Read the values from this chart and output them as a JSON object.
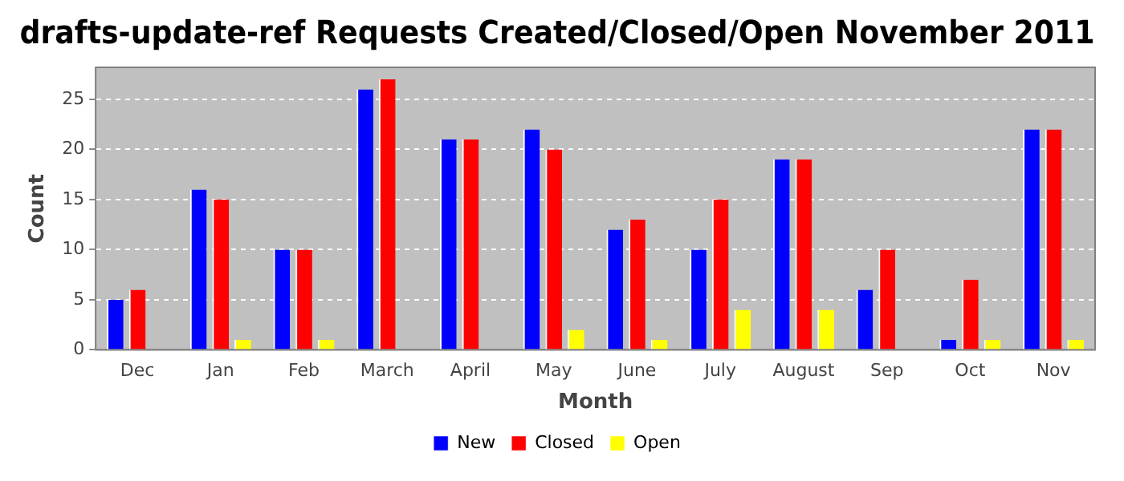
{
  "chart_data": {
    "type": "bar",
    "title": "drafts-update-ref Requests Created/Closed/Open November 2011",
    "xlabel": "Month",
    "ylabel": "Count",
    "categories": [
      "Dec",
      "Jan",
      "Feb",
      "March",
      "April",
      "May",
      "June",
      "July",
      "August",
      "Sep",
      "Oct",
      "Nov"
    ],
    "series": [
      {
        "name": "New",
        "color": "#0000ff",
        "values": [
          5,
          16,
          10,
          26,
          21,
          22,
          12,
          10,
          19,
          6,
          1,
          22
        ]
      },
      {
        "name": "Closed",
        "color": "#ff0000",
        "values": [
          6,
          15,
          10,
          27,
          21,
          20,
          13,
          15,
          19,
          10,
          7,
          22
        ]
      },
      {
        "name": "Open",
        "color": "#ffff00",
        "values": [
          0,
          1,
          1,
          0,
          0,
          2,
          1,
          4,
          4,
          0,
          1,
          1
        ]
      }
    ],
    "ylim": [
      0,
      28.2
    ],
    "yticks": [
      0,
      5,
      10,
      15,
      20,
      25
    ],
    "grid": "y",
    "legend": "bottom"
  }
}
